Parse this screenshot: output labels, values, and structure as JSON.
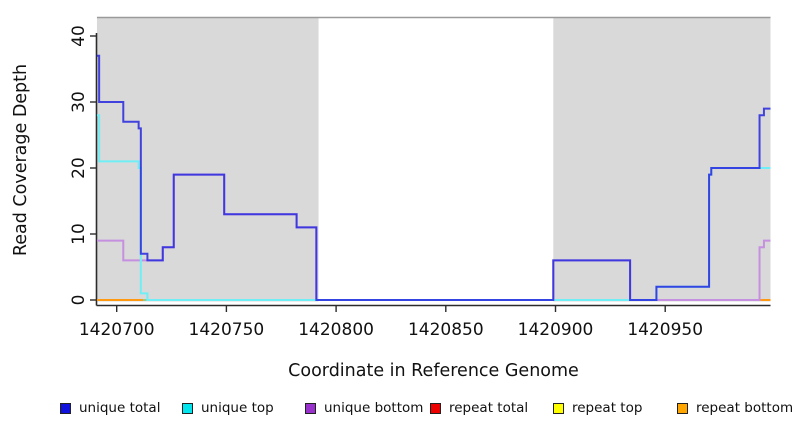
{
  "figure": {
    "background": "#FFFFFF",
    "plot_background_shaded": "#D9D9D9",
    "axis_color": "#2B2B2B",
    "top_border_color": "#9A9A9A"
  },
  "chart_data": {
    "type": "line",
    "subtype": "step-after",
    "title": "",
    "xlabel": "Coordinate in Reference Genome",
    "ylabel": "Read Coverage Depth",
    "xlim": [
      1420691,
      1420998
    ],
    "ylim": [
      0,
      43
    ],
    "x_ticks": [
      1420700,
      1420750,
      1420800,
      1420850,
      1420900,
      1420950
    ],
    "y_ticks": [
      0,
      10,
      20,
      30,
      40
    ],
    "grid": false,
    "legend_position": "bottom",
    "shaded_regions": [
      {
        "from": 1420691,
        "to": 1420792,
        "color": "#D9D9D9"
      },
      {
        "from": 1420899,
        "to": 1420998,
        "color": "#D9D9D9"
      }
    ],
    "series": [
      {
        "name": "repeat top",
        "color": "#8FCE8F",
        "line_value": 0,
        "points": [
          [
            1420691,
            0
          ]
        ],
        "draw_segments": [
          [
            1420712,
            1420946
          ]
        ]
      },
      {
        "name": "repeat total",
        "color": "#E26070",
        "line_value": 0,
        "points": [
          [
            1420691,
            0
          ]
        ],
        "draw_segments": [
          [
            1420946,
            1420993
          ]
        ]
      },
      {
        "name": "repeat bottom",
        "color": "#FF9912",
        "line_value": 0,
        "points": [
          [
            1420691,
            0
          ]
        ],
        "draw_segments": [
          [
            1420691,
            1420712
          ],
          [
            1420993,
            1420998
          ]
        ]
      },
      {
        "name": "unique bottom",
        "color": "#C490DF",
        "opacity": 1,
        "points": [
          [
            1420691,
            9
          ],
          [
            1420703,
            6
          ],
          [
            1420721,
            8
          ],
          [
            1420726,
            19
          ],
          [
            1420749,
            13
          ],
          [
            1420782,
            11
          ],
          [
            1420791,
            0
          ],
          [
            1420899,
            6
          ],
          [
            1420934,
            0
          ],
          [
            1420993,
            8
          ],
          [
            1420995,
            9
          ]
        ]
      },
      {
        "name": "unique top",
        "color": "#6FEFF5",
        "opacity": 1,
        "points": [
          [
            1420691,
            28
          ],
          [
            1420692,
            21
          ],
          [
            1420710,
            20
          ],
          [
            1420711,
            1
          ],
          [
            1420714,
            0
          ],
          [
            1420946,
            2
          ],
          [
            1420970,
            19
          ],
          [
            1420971,
            20
          ]
        ]
      },
      {
        "name": "unique total",
        "color": "#2B2BDF",
        "opacity": 0.87,
        "points": [
          [
            1420691,
            37
          ],
          [
            1420692,
            30
          ],
          [
            1420703,
            27
          ],
          [
            1420710,
            26
          ],
          [
            1420711,
            7
          ],
          [
            1420714,
            6
          ],
          [
            1420721,
            8
          ],
          [
            1420726,
            19
          ],
          [
            1420749,
            13
          ],
          [
            1420782,
            11
          ],
          [
            1420791,
            0
          ],
          [
            1420899,
            6
          ],
          [
            1420934,
            0
          ],
          [
            1420946,
            2
          ],
          [
            1420970,
            19
          ],
          [
            1420971,
            20
          ],
          [
            1420993,
            28
          ],
          [
            1420995,
            29
          ]
        ]
      }
    ],
    "legend": [
      {
        "label": "unique total",
        "color": "#1111DD"
      },
      {
        "label": "unique top",
        "color": "#00E5EE"
      },
      {
        "label": "unique bottom",
        "color": "#9932CC"
      },
      {
        "label": "repeat total",
        "color": "#EE0000"
      },
      {
        "label": "repeat top",
        "color": "#FFFF00"
      },
      {
        "label": "repeat bottom",
        "color": "#FFA500"
      }
    ]
  }
}
